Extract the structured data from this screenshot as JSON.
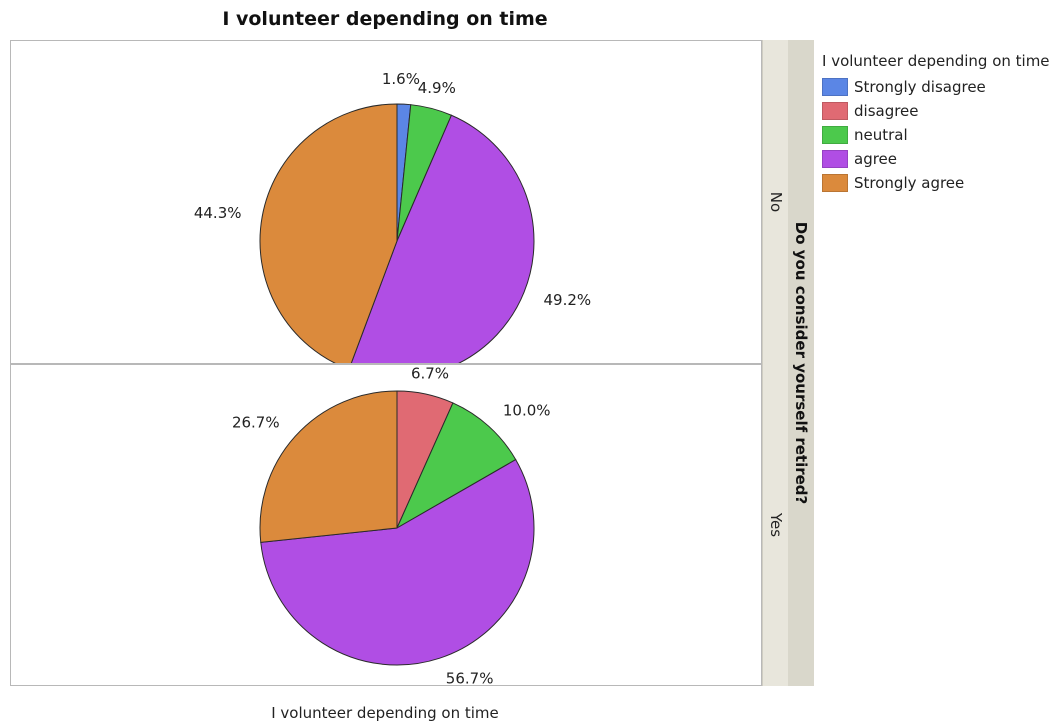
{
  "chart_data": {
    "type": "pie",
    "title": "I volunteer depending on time",
    "xlabel": "I volunteer depending on time",
    "facet_title": "Do you consider yourself retired?",
    "categories": [
      "Strongly disagree",
      "disagree",
      "neutral",
      "agree",
      "Strongly agree"
    ],
    "colors": {
      "Strongly disagree": "#5b86e5",
      "disagree": "#e06a73",
      "neutral": "#4cc94c",
      "agree": "#b04ee4",
      "Strongly agree": "#db8a3c"
    },
    "legend": {
      "title": "I volunteer depending on time",
      "position": "top-right",
      "items": [
        "Strongly disagree",
        "disagree",
        "neutral",
        "agree",
        "Strongly agree"
      ]
    },
    "panels": [
      {
        "facet": "No",
        "slices": [
          {
            "category": "Strongly disagree",
            "value": 1.6,
            "label": "1.6%"
          },
          {
            "category": "neutral",
            "value": 4.9,
            "label": "4.9%"
          },
          {
            "category": "agree",
            "value": 49.2,
            "label": "49.2%"
          },
          {
            "category": "Strongly agree",
            "value": 44.3,
            "label": "44.3%"
          }
        ]
      },
      {
        "facet": "Yes",
        "slices": [
          {
            "category": "disagree",
            "value": 6.7,
            "label": "6.7%"
          },
          {
            "category": "neutral",
            "value": 10.0,
            "label": "10.0%"
          },
          {
            "category": "agree",
            "value": 56.7,
            "label": "56.7%"
          },
          {
            "category": "Strongly agree",
            "value": 26.7,
            "label": "26.7%"
          }
        ]
      }
    ]
  }
}
